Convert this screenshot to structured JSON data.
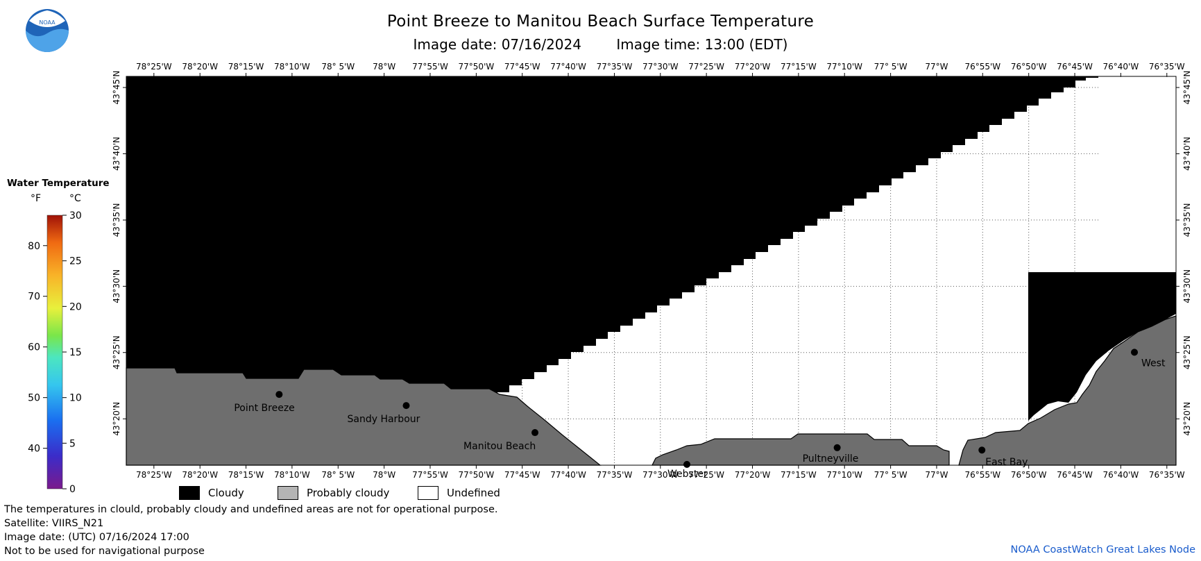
{
  "header": {
    "title": "Point Breeze to Manitou Beach Surface Temperature",
    "image_date": "Image date: 07/16/2024",
    "image_time": "Image time: 13:00 (EDT)"
  },
  "logo": {
    "text": "NOAA"
  },
  "colorbar": {
    "title": "Water Temperature",
    "f_unit": "°F",
    "c_unit": "°C",
    "f_ticks": [
      "80",
      "70",
      "60",
      "50",
      "40"
    ],
    "f_values": [
      80,
      70,
      60,
      50,
      40
    ],
    "c_ticks": [
      "30",
      "25",
      "20",
      "15",
      "10",
      "5",
      "0"
    ],
    "c_values": [
      30,
      25,
      20,
      15,
      10,
      5,
      0
    ]
  },
  "map": {
    "lon_labels": [
      "78°25'W",
      "78°20'W",
      "78°15'W",
      "78°10'W",
      "78° 5'W",
      "78°W",
      "77°55'W",
      "77°50'W",
      "77°45'W",
      "77°40'W",
      "77°35'W",
      "77°30'W",
      "77°25'W",
      "77°20'W",
      "77°15'W",
      "77°10'W",
      "77° 5'W",
      "77°W",
      "76°55'W",
      "76°50'W",
      "76°45'W",
      "76°40'W",
      "76°35'W"
    ],
    "lon_values": [
      -78.4167,
      -78.3333,
      -78.25,
      -78.1667,
      -78.0833,
      -78.0,
      -77.9167,
      -77.8333,
      -77.75,
      -77.6667,
      -77.5833,
      -77.5,
      -77.4167,
      -77.3333,
      -77.25,
      -77.1667,
      -77.0833,
      -77.0,
      -76.9167,
      -76.8333,
      -76.75,
      -76.6667,
      -76.5833
    ],
    "lat_labels": [
      "43°45'N",
      "43°40'N",
      "43°35'N",
      "43°30'N",
      "43°25'N",
      "43°20'N"
    ],
    "lat_values": [
      43.75,
      43.6667,
      43.5833,
      43.5,
      43.4167,
      43.3333
    ],
    "places": [
      {
        "name": "Point Breeze",
        "lon": -78.19,
        "lat": 43.364
      },
      {
        "name": "Sandy Harbour",
        "lon": -77.96,
        "lat": 43.35
      },
      {
        "name": "Manitou Beach",
        "lon": -77.727,
        "lat": 43.316
      },
      {
        "name": "Webster",
        "lon": -77.452,
        "lat": 43.276
      },
      {
        "name": "Pultneyville",
        "lon": -77.18,
        "lat": 43.297
      },
      {
        "name": "East Bay",
        "lon": -76.918,
        "lat": 43.294
      },
      {
        "name": "West",
        "lon": -76.642,
        "lat": 43.417
      }
    ]
  },
  "legend": {
    "cloudy": {
      "label": "Cloudy",
      "color": "#000000"
    },
    "probably_cloudy": {
      "label": "Probably cloudy",
      "color": "#b4b4b4"
    },
    "undefined": {
      "label": "Undefined",
      "color": "#ffffff"
    }
  },
  "colors": {
    "land": "#6e6e6e",
    "cloud": "#000000",
    "water": "#ffffff",
    "grid": "#555555"
  },
  "notes": {
    "line1": "The temperatures in clould, probably cloudy and undefined areas are not for operational purpose.",
    "line2": "Satellite: VIIRS_N21",
    "line3": "Image date: (UTC) 07/16/2024  17:00",
    "line4": "Not to be used for navigational purpose"
  },
  "credit": "NOAA CoastWatch Great Lakes Node"
}
